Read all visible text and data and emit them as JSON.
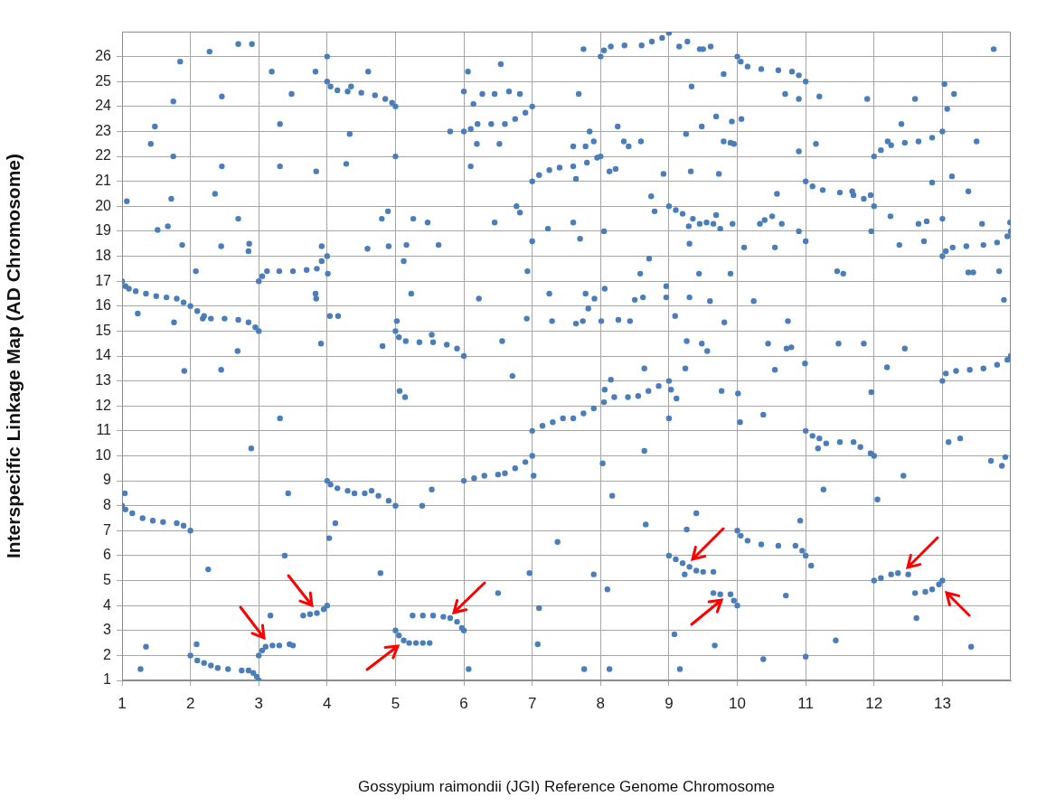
{
  "chart_data": {
    "type": "scatter",
    "xlabel": "Gossypium raimondii (JGI) Reference Genome Chromosome",
    "ylabel": "Interspecific Linkage Map (AD Chromosome)",
    "xlim": [
      1,
      14
    ],
    "ylim": [
      1,
      27
    ],
    "xticks": [
      1,
      2,
      3,
      4,
      5,
      6,
      7,
      8,
      9,
      10,
      11,
      12,
      13
    ],
    "yticks": [
      1,
      2,
      3,
      4,
      5,
      6,
      7,
      8,
      9,
      10,
      11,
      12,
      13,
      14,
      15,
      16,
      17,
      18,
      19,
      20,
      21,
      22,
      23,
      24,
      25,
      26
    ],
    "grid": true,
    "marker": "circle",
    "series": [
      {
        "color": "#4a7ebb",
        "x": [
          1,
          1.05,
          1.1,
          1.2,
          1.35,
          1.5,
          1.65,
          1.8,
          1.9,
          2.0,
          2.1,
          2.2,
          2.3,
          2.5,
          2.7,
          2.85,
          2.95,
          3.0
        ],
        "values": [
          17,
          16.8,
          16.7,
          16.6,
          16.5,
          16.4,
          16.35,
          16.3,
          16.15,
          16.0,
          15.8,
          15.6,
          15.5,
          15.5,
          15.45,
          15.35,
          15.15,
          15.0
        ]
      },
      {
        "color": "#4a7ebb",
        "x": [
          1,
          1.05,
          1.15,
          1.3,
          1.45,
          1.6,
          1.8,
          1.9,
          2.0
        ],
        "values": [
          8,
          7.85,
          7.7,
          7.5,
          7.4,
          7.35,
          7.3,
          7.2,
          7.0
        ]
      },
      {
        "color": "#4a7ebb",
        "x": [
          2,
          2.1,
          2.2,
          2.3,
          2.4,
          2.55,
          2.75,
          2.85,
          2.92,
          2.97,
          3.0
        ],
        "values": [
          2,
          1.8,
          1.7,
          1.6,
          1.5,
          1.45,
          1.4,
          1.4,
          1.3,
          1.15,
          1.0
        ]
      },
      {
        "color": "#4a7ebb",
        "x": [
          3,
          3.05,
          3.1,
          3.2,
          3.3,
          3.45,
          3.5
        ],
        "values": [
          2,
          2.2,
          2.35,
          2.4,
          2.4,
          2.45,
          2.4
        ]
      },
      {
        "color": "#4a7ebb",
        "x": [
          3,
          3.05,
          3.12,
          3.3,
          3.5,
          3.7,
          3.85,
          3.92,
          4.0
        ],
        "values": [
          17,
          17.2,
          17.4,
          17.4,
          17.4,
          17.45,
          17.5,
          17.8,
          18
        ]
      },
      {
        "color": "#4a7ebb",
        "x": [
          3.65,
          3.75,
          3.85,
          3.95,
          4.0
        ],
        "values": [
          3.6,
          3.65,
          3.7,
          3.85,
          4.0
        ]
      },
      {
        "color": "#4a7ebb",
        "x": [
          4,
          4.05,
          4.15,
          4.3,
          4.5,
          4.7,
          4.85,
          4.95,
          5
        ],
        "values": [
          25,
          24.8,
          24.65,
          24.6,
          24.55,
          24.45,
          24.3,
          24.15,
          24
        ]
      },
      {
        "color": "#4a7ebb",
        "x": [
          4,
          4.05,
          4.15,
          4.3,
          4.4,
          4.55,
          4.65,
          4.75,
          4.9,
          5
        ],
        "values": [
          9,
          8.85,
          8.7,
          8.6,
          8.5,
          8.5,
          8.6,
          8.4,
          8.2,
          8
        ]
      },
      {
        "color": "#4a7ebb",
        "x": [
          5,
          5.05,
          5.15,
          5.35,
          5.55,
          5.75,
          5.9,
          6
        ],
        "values": [
          15,
          14.75,
          14.6,
          14.55,
          14.55,
          14.45,
          14.3,
          14
        ]
      },
      {
        "color": "#4a7ebb",
        "x": [
          5,
          5.05,
          5.12,
          5.2,
          5.3,
          5.4,
          5.5
        ],
        "values": [
          3,
          2.8,
          2.6,
          2.5,
          2.5,
          2.5,
          2.5
        ]
      },
      {
        "color": "#4a7ebb",
        "x": [
          5.25,
          5.4,
          5.55,
          5.7,
          5.8,
          5.9,
          5.97,
          6
        ],
        "values": [
          3.6,
          3.6,
          3.6,
          3.55,
          3.5,
          3.35,
          3.1,
          3
        ]
      },
      {
        "color": "#4a7ebb",
        "x": [
          6,
          6.1,
          6.2,
          6.4,
          6.6,
          6.75,
          6.9,
          7
        ],
        "values": [
          23,
          23.1,
          23.3,
          23.3,
          23.3,
          23.5,
          23.75,
          24
        ]
      },
      {
        "color": "#4a7ebb",
        "x": [
          6,
          6.15,
          6.3,
          6.5,
          6.6,
          6.75,
          6.9,
          7
        ],
        "values": [
          9,
          9.1,
          9.2,
          9.25,
          9.3,
          9.5,
          9.75,
          10
        ]
      },
      {
        "color": "#4a7ebb",
        "x": [
          7,
          7.1,
          7.25,
          7.4,
          7.6,
          7.8,
          7.95,
          8
        ],
        "values": [
          21,
          21.25,
          21.45,
          21.55,
          21.6,
          21.75,
          21.95,
          22
        ]
      },
      {
        "color": "#4a7ebb",
        "x": [
          7,
          7.15,
          7.3,
          7.45,
          7.6,
          7.75,
          7.9,
          8.05,
          8.2,
          8.4,
          8.55,
          8.7,
          8.85,
          9
        ],
        "values": [
          11,
          11.2,
          11.35,
          11.5,
          11.5,
          11.7,
          11.9,
          12.15,
          12.35,
          12.35,
          12.4,
          12.6,
          12.8,
          13
        ]
      },
      {
        "color": "#4a7ebb",
        "x": [
          8,
          8.05,
          8.15,
          8.35,
          8.6,
          8.75,
          8.9,
          9
        ],
        "values": [
          26,
          26.25,
          26.4,
          26.45,
          26.45,
          26.6,
          26.75,
          26.95
        ]
      },
      {
        "color": "#4a7ebb",
        "x": [
          9,
          9.1,
          9.2,
          9.35,
          9.45,
          9.55,
          9.65,
          9.75,
          9.8,
          9.9,
          9.95
        ],
        "values": [
          20,
          19.85,
          19.7,
          19.5,
          19.3,
          19.35,
          19.3,
          19.1,
          22.6,
          22.55,
          22.5
        ]
      },
      {
        "color": "#4a7ebb",
        "x": [
          9,
          9.1,
          9.2,
          9.3,
          9.4,
          9.5,
          9.65
        ],
        "values": [
          6,
          5.85,
          5.7,
          5.55,
          5.4,
          5.35,
          5.35
        ]
      },
      {
        "color": "#4a7ebb",
        "x": [
          9.65,
          9.75,
          9.9,
          9.95,
          10
        ],
        "values": [
          4.5,
          4.45,
          4.45,
          4.2,
          4.0
        ]
      },
      {
        "color": "#4a7ebb",
        "x": [
          10,
          10.05,
          10.15,
          10.35,
          10.6,
          10.8,
          10.9,
          11
        ],
        "values": [
          26,
          25.8,
          25.6,
          25.5,
          25.45,
          25.4,
          25.25,
          25
        ]
      },
      {
        "color": "#4a7ebb",
        "x": [
          10,
          10.05,
          10.15,
          10.35,
          10.6,
          10.85,
          10.95,
          11
        ],
        "values": [
          7,
          6.8,
          6.6,
          6.45,
          6.4,
          6.4,
          6.2,
          6
        ]
      },
      {
        "color": "#4a7ebb",
        "x": [
          11,
          11.1,
          11.25,
          11.5,
          11.7,
          11.85,
          12
        ],
        "values": [
          21,
          20.8,
          20.65,
          20.55,
          20.45,
          20.3,
          20
        ]
      },
      {
        "color": "#4a7ebb",
        "x": [
          11,
          11.1,
          11.2,
          11.3,
          11.5,
          11.7,
          11.8,
          11.95,
          12
        ],
        "values": [
          11,
          10.8,
          10.7,
          10.5,
          10.55,
          10.55,
          10.35,
          10.1,
          10
        ]
      },
      {
        "color": "#4a7ebb",
        "x": [
          12,
          12.1,
          12.25,
          12.45,
          12.65,
          12.85,
          13
        ],
        "values": [
          22,
          22.25,
          22.45,
          22.55,
          22.6,
          22.75,
          23
        ]
      },
      {
        "color": "#4a7ebb",
        "x": [
          12,
          12.1,
          12.25,
          12.35,
          12.5
        ],
        "values": [
          5,
          5.1,
          5.25,
          5.3,
          5.25
        ]
      },
      {
        "color": "#4a7ebb",
        "x": [
          12.6,
          12.75,
          12.85,
          12.95,
          13
        ],
        "values": [
          4.5,
          4.55,
          4.65,
          4.85,
          5
        ]
      },
      {
        "color": "#4a7ebb",
        "x": [
          13,
          13.05,
          13.15,
          13.35,
          13.6,
          13.8,
          13.95,
          14
        ],
        "values": [
          18,
          18.2,
          18.35,
          18.4,
          18.45,
          18.55,
          18.8,
          19
        ]
      },
      {
        "color": "#4a7ebb",
        "x": [
          13,
          13.05,
          13.2,
          13.4,
          13.6,
          13.8,
          13.95,
          14
        ],
        "values": [
          13,
          13.3,
          13.4,
          13.45,
          13.5,
          13.65,
          13.85,
          14
        ]
      },
      {
        "color": "#4a7ebb",
        "x": [
          1.07,
          1.48,
          1.42,
          1.23,
          1.52,
          1.67,
          1.75,
          1.85,
          1.75,
          1.72,
          1.76,
          1.88,
          2.28,
          2.7,
          2.9,
          2.46,
          2.46,
          2.36,
          2.7,
          2.45,
          2.86,
          2.85,
          2.08,
          2.18,
          2.69
        ],
        "values": [
          20.2,
          23.2,
          22.5,
          15.7,
          19.05,
          19.2,
          24.2,
          25.8,
          22.0,
          20.3,
          15.35,
          18.45,
          26.2,
          26.5,
          26.5,
          24.4,
          21.6,
          20.5,
          19.5,
          18.4,
          18.5,
          18.2,
          17.4,
          15.5,
          14.2
        ]
      },
      {
        "color": "#4a7ebb",
        "x": [
          3.19,
          3.31,
          3.48,
          3.31,
          3.83,
          4.0,
          3.84,
          3.92,
          3.83,
          3.84,
          4.01,
          4.04,
          4.16,
          3.91,
          4.35,
          4.33,
          4.28,
          4.6,
          4.59,
          4.8,
          4.89,
          4.9,
          4.81,
          5.0,
          5.02,
          5.12,
          5.16,
          5.26,
          5.47,
          5.63,
          5.53,
          5.23
        ],
        "values": [
          25.4,
          23.3,
          24.5,
          21.6,
          25.4,
          26.0,
          21.4,
          18.4,
          16.5,
          16.3,
          17.3,
          15.6,
          15.6,
          14.5,
          24.8,
          22.9,
          21.7,
          25.4,
          18.3,
          19.5,
          19.8,
          18.4,
          14.4,
          22.0,
          15.4,
          17.8,
          18.45,
          19.5,
          19.35,
          18.45,
          14.85,
          16.5
        ]
      },
      {
        "color": "#4a7ebb",
        "x": [
          6.06,
          6.0,
          6.14,
          6.27,
          6.45,
          6.66,
          6.82,
          6.54,
          5.8,
          6.19,
          6.52,
          6.1,
          6.45,
          6.77,
          6.82,
          6.22,
          6.92,
          6.56,
          7.0,
          6.93
        ],
        "values": [
          25.4,
          24.6,
          24.1,
          24.5,
          24.5,
          24.6,
          24.5,
          25.7,
          23.0,
          22.5,
          22.5,
          21.6,
          19.35,
          20.0,
          19.75,
          16.3,
          15.5,
          14.6,
          18.6,
          17.4
        ]
      },
      {
        "color": "#4a7ebb",
        "x": [
          1.91,
          2.45,
          2.89,
          3.31,
          1.04,
          2.26,
          3.43,
          3.38,
          3.17,
          2.09,
          1.35,
          1.27,
          4.03,
          4.12,
          4.78,
          5.06,
          5.14,
          5.39,
          5.53,
          6.07,
          6.5,
          6.71,
          6.96,
          7.02,
          7.1,
          7.08
        ],
        "values": [
          13.4,
          13.45,
          10.3,
          11.5,
          8.5,
          5.45,
          8.5,
          6.0,
          3.6,
          2.45,
          2.35,
          1.45,
          6.7,
          7.3,
          5.3,
          12.6,
          12.35,
          8.0,
          8.65,
          1.45,
          4.5,
          13.2,
          5.3,
          9.2,
          3.9,
          2.45
        ]
      },
      {
        "color": "#4a7ebb",
        "x": [
          7.75,
          9.15,
          9.27,
          9.45,
          9.5,
          9.61,
          9.8,
          9.33,
          7.68,
          10.7,
          10.9,
          11.2,
          11.9,
          12.6,
          13.03,
          13.17,
          13.07,
          13.75,
          8.25,
          7.84,
          7.6,
          7.78,
          7.9,
          8.34,
          8.41,
          8.59,
          9.25,
          9.48,
          9.69,
          9.92,
          10.06,
          10.9,
          11.15,
          12.2,
          12.4,
          13.5,
          8.13,
          8.22,
          7.64,
          8.92,
          9.32,
          9.73,
          8.74,
          8.79,
          10.58,
          11.68,
          11.95,
          12.24,
          12.65,
          12.77,
          13.0,
          12.85,
          13.14,
          13.38,
          13.58,
          13.99
        ],
        "values": [
          26.3,
          26.4,
          26.6,
          26.3,
          26.3,
          26.4,
          25.3,
          24.8,
          24.5,
          24.5,
          24.3,
          24.4,
          24.3,
          24.3,
          24.9,
          24.5,
          23.9,
          26.3,
          23.2,
          23.0,
          22.4,
          22.4,
          22.6,
          22.6,
          22.4,
          22.6,
          22.9,
          23.2,
          23.6,
          23.4,
          23.5,
          22.2,
          22.5,
          22.6,
          23.3,
          22.6,
          21.4,
          21.5,
          21.1,
          21.3,
          21.4,
          21.3,
          20.4,
          19.8,
          20.5,
          20.6,
          20.45,
          19.6,
          19.3,
          19.4,
          19.5,
          20.95,
          21.2,
          20.6,
          19.3,
          19.35
        ]
      },
      {
        "color": "#4a7ebb",
        "x": [
          7.23,
          7.6,
          7.7,
          8.05,
          9.29,
          9.69,
          9.93,
          10.33,
          10.4,
          10.51,
          10.65,
          10.9,
          11.0,
          11.96,
          12.37,
          12.73,
          10.1,
          10.55,
          9.3,
          8.71,
          8.58,
          9.44,
          9.9,
          11.46,
          11.55,
          13.38,
          13.45,
          13.83,
          13.9,
          7.25,
          7.78,
          7.91,
          7.82,
          8.06,
          8.5,
          8.62,
          8.96,
          8.96,
          9.3,
          9.6,
          10.24,
          7.29,
          7.64,
          7.74,
          8.01,
          8.26,
          8.43,
          9.09,
          9.81,
          10.74,
          9.26,
          9.48,
          9.56,
          10.45,
          10.72,
          10.79,
          11.48,
          11.85,
          12.45,
          10.99,
          12.19
        ],
        "values": [
          19.1,
          19.35,
          18.7,
          19.0,
          19.2,
          19.65,
          19.3,
          19.3,
          19.45,
          19.6,
          19.3,
          19.0,
          18.6,
          19.0,
          18.45,
          18.6,
          18.35,
          18.35,
          18.5,
          17.9,
          17.3,
          17.3,
          17.3,
          17.4,
          17.3,
          17.35,
          17.35,
          17.4,
          16.25,
          16.5,
          16.5,
          16.3,
          15.9,
          16.7,
          16.25,
          16.35,
          16.8,
          16.35,
          16.35,
          16.2,
          16.2,
          15.4,
          15.3,
          15.4,
          15.4,
          15.45,
          15.4,
          15.6,
          15.35,
          15.4,
          14.6,
          14.5,
          14.2,
          14.5,
          14.3,
          14.35,
          14.5,
          14.5,
          14.3,
          13.7,
          13.55
        ]
      },
      {
        "color": "#4a7ebb",
        "x": [
          8.64,
          9.24,
          10.55,
          9.03,
          9.11,
          8.06,
          8.15,
          9.77,
          10.01,
          9.0,
          10.04,
          10.38,
          11.96,
          8.64,
          8.03,
          8.17,
          11.26,
          11.18,
          12.43,
          12.05,
          13.09,
          13.26,
          13.71,
          13.87,
          13.92,
          8.66,
          9.4,
          9.26,
          10.92,
          7.37,
          9.23,
          7.9,
          11.08,
          8.1,
          10.71,
          12.62,
          9.08,
          9.67,
          11.44,
          13.42,
          7.76,
          8.13,
          9.16,
          10.38,
          11.0
        ],
        "values": [
          13.5,
          13.5,
          13.45,
          12.65,
          12.3,
          12.65,
          13.05,
          12.6,
          12.5,
          11.5,
          11.35,
          11.65,
          12.55,
          10.2,
          9.7,
          8.4,
          8.65,
          10.3,
          9.2,
          8.25,
          10.55,
          10.7,
          9.8,
          9.6,
          9.95,
          7.25,
          7.7,
          7.05,
          7.4,
          6.55,
          5.25,
          5.25,
          5.6,
          4.65,
          4.4,
          3.5,
          2.85,
          2.4,
          2.6,
          2.35,
          1.45,
          1.45,
          1.45,
          1.85,
          1.95
        ]
      }
    ]
  }
}
